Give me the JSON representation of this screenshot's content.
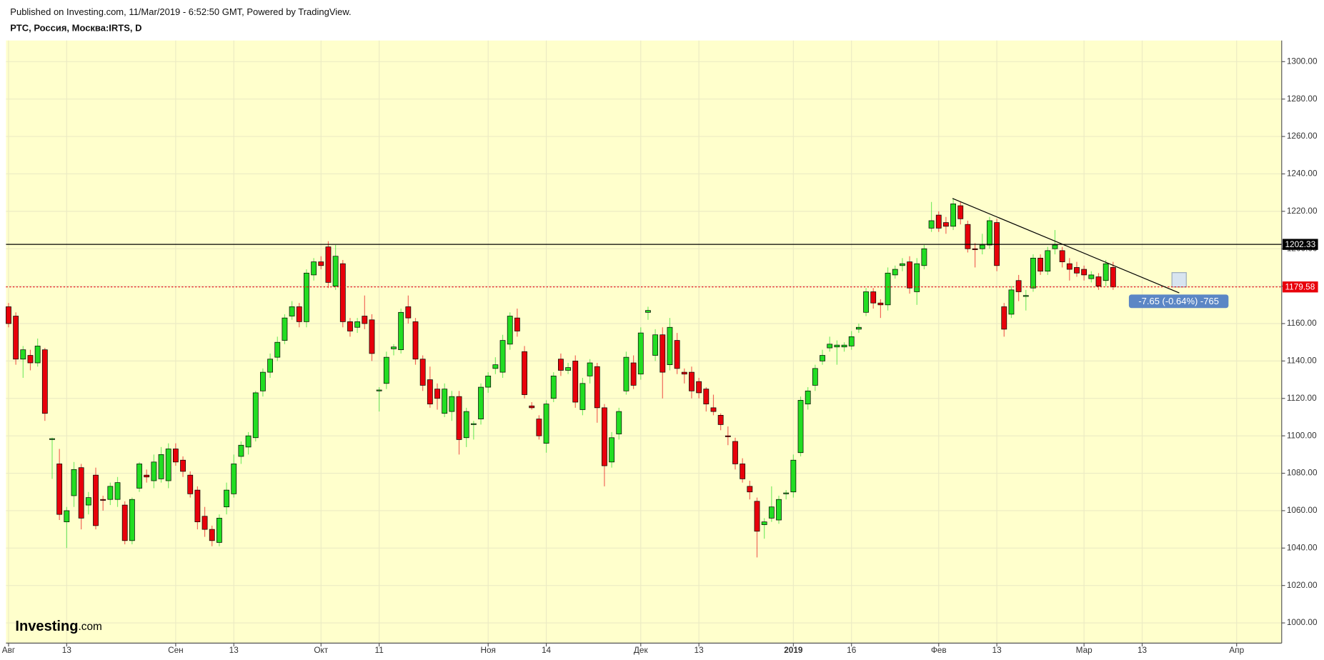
{
  "chart_data": {
    "type": "candlestick",
    "caption": "Published on Investing.com, 11/Mar/2019 - 6:52:50 GMT, Powered by TradingView.",
    "title": "РТС, Россия, Москва:IRTS, D",
    "up_color": "#22dd22",
    "down_color": "#e8000b",
    "open": [
      1169,
      1164,
      1141,
      1143,
      1139,
      1146,
      1098,
      1085,
      1054,
      1068,
      1083,
      1063,
      1079,
      1066,
      1066,
      1066,
      1063,
      1044,
      1072,
      1079,
      1076,
      1077,
      1076,
      1093,
      1087,
      1079,
      1071,
      1057,
      1050,
      1043,
      1062,
      1069,
      1089,
      1094,
      1099,
      1124,
      1134,
      1142,
      1151,
      1164,
      1169,
      1161,
      1186,
      1193,
      1201,
      1180,
      1192,
      1161,
      1158,
      1164,
      1162,
      1124,
      1128,
      1146.5,
      1146,
      1169,
      1161,
      1141,
      1130,
      1125,
      1112,
      1113,
      1121,
      1099,
      1106,
      1109,
      1126,
      1136,
      1134,
      1149,
      1163,
      1145,
      1116,
      1109,
      1096,
      1120,
      1141,
      1135,
      1140,
      1114,
      1132,
      1137,
      1115,
      1086,
      1101,
      1124,
      1139,
      1133,
      1166,
      1143,
      1154,
      1138,
      1151,
      1134,
      1134,
      1129,
      1125,
      1115,
      1111,
      1100,
      1097,
      1085,
      1073,
      1065,
      1052.5,
      1056,
      1055,
      1069,
      1070,
      1091,
      1117,
      1127,
      1140,
      1147,
      1147.5,
      1147.5,
      1148,
      1157,
      1166,
      1177,
      1171,
      1170,
      1186,
      1191,
      1193,
      1177,
      1191,
      1211,
      1218,
      1214,
      1212,
      1223,
      1213,
      1200,
      1200,
      1202,
      1214,
      1169,
      1165,
      1183,
      1174.5,
      1179,
      1195,
      1188,
      1200,
      1199,
      1192,
      1190,
      1189,
      1184,
      1185,
      1183,
      1190
    ],
    "high": [
      1171,
      1166,
      1148,
      1146,
      1152,
      1147,
      1099,
      1093,
      1062,
      1086,
      1085,
      1070,
      1083,
      1068,
      1075,
      1078,
      1065,
      1067,
      1086,
      1082,
      1090,
      1094,
      1096,
      1096,
      1089,
      1081,
      1073,
      1062,
      1052,
      1058,
      1075,
      1090,
      1097,
      1102,
      1124,
      1136,
      1144,
      1153,
      1165,
      1172,
      1171,
      1189,
      1195,
      1196,
      1204,
      1202,
      1194,
      1163,
      1163,
      1175,
      1165,
      1126,
      1145,
      1149,
      1168,
      1175,
      1163,
      1143,
      1137,
      1128,
      1128,
      1124,
      1124,
      1115,
      1108,
      1128,
      1134,
      1142,
      1154,
      1166,
      1168,
      1148,
      1118,
      1111,
      1119,
      1134,
      1144,
      1139,
      1143,
      1131,
      1141,
      1139,
      1117,
      1102,
      1115,
      1145,
      1143,
      1158,
      1169,
      1157,
      1158,
      1163,
      1155,
      1136,
      1137,
      1131,
      1126,
      1122,
      1112,
      1105,
      1099,
      1088,
      1076,
      1067,
      1056,
      1073,
      1068,
      1071,
      1090,
      1121,
      1126,
      1138,
      1146,
      1153,
      1151,
      1150,
      1156,
      1160,
      1179,
      1179,
      1173,
      1190,
      1191,
      1195,
      1196,
      1195,
      1202,
      1225,
      1220,
      1217,
      1227,
      1225,
      1215,
      1203,
      1208,
      1217,
      1216,
      1171,
      1180,
      1186,
      1178,
      1197,
      1197,
      1201,
      1210,
      1201,
      1195,
      1193,
      1191,
      1188,
      1187,
      1194,
      1193
    ],
    "low": [
      1158,
      1138,
      1131,
      1135,
      1137,
      1108,
      1077,
      1055,
      1040,
      1062,
      1050,
      1058,
      1050,
      1060,
      1063,
      1062,
      1042,
      1042,
      1070,
      1075,
      1072,
      1075,
      1072,
      1084,
      1078,
      1067,
      1050,
      1046,
      1041,
      1041,
      1058,
      1067,
      1085,
      1090,
      1097,
      1121,
      1131,
      1140,
      1149,
      1162,
      1158,
      1158,
      1183,
      1189,
      1179,
      1178,
      1158,
      1153,
      1155,
      1157,
      1140,
      1113,
      1125,
      1143,
      1144,
      1160,
      1138,
      1124,
      1115,
      1114,
      1110,
      1108,
      1090,
      1094,
      1098,
      1106,
      1123,
      1133,
      1131,
      1146,
      1153,
      1120,
      1114,
      1098,
      1091,
      1118,
      1132,
      1133,
      1115,
      1111,
      1128,
      1107,
      1073,
      1083,
      1098,
      1122,
      1125,
      1130,
      1162,
      1140,
      1120,
      1135,
      1133,
      1128,
      1120,
      1120,
      1113,
      1111,
      1103,
      1095,
      1082,
      1075,
      1066,
      1035,
      1045,
      1054,
      1053,
      1066,
      1067,
      1089,
      1114,
      1124,
      1138,
      1145,
      1138,
      1145,
      1146,
      1155,
      1164,
      1168,
      1163,
      1167,
      1184,
      1188,
      1176,
      1170,
      1189,
      1209,
      1209,
      1208,
      1210,
      1213,
      1198,
      1190,
      1197,
      1200,
      1188,
      1153,
      1163,
      1172,
      1167,
      1177,
      1186,
      1186,
      1197,
      1190,
      1183,
      1185,
      1183,
      1182,
      1178,
      1180,
      1178
    ],
    "close": [
      1160,
      1141,
      1146,
      1139,
      1148,
      1112,
      1098.5,
      1058,
      1060,
      1082,
      1056,
      1067,
      1052,
      1065.5,
      1073,
      1075,
      1044,
      1066,
      1085,
      1078,
      1086,
      1090,
      1093,
      1086,
      1081,
      1069,
      1054,
      1050,
      1044,
      1056,
      1071,
      1085,
      1095,
      1100,
      1123,
      1134,
      1141,
      1150,
      1163,
      1169,
      1161,
      1187,
      1193,
      1191,
      1182,
      1196,
      1161,
      1156,
      1161,
      1160,
      1144,
      1124.5,
      1142,
      1147.5,
      1166,
      1163,
      1141,
      1127,
      1117,
      1120,
      1125,
      1121,
      1098,
      1113,
      1106.5,
      1126,
      1132,
      1138,
      1151,
      1164,
      1156,
      1122,
      1115,
      1100,
      1117,
      1132,
      1135,
      1136.5,
      1118,
      1128,
      1139,
      1115,
      1084,
      1099,
      1113,
      1142,
      1127,
      1155,
      1167,
      1154,
      1134,
      1158,
      1136,
      1133,
      1124,
      1123,
      1117,
      1113,
      1106,
      1099.5,
      1085,
      1077,
      1070,
      1049,
      1054,
      1062,
      1066,
      1069.5,
      1087,
      1119,
      1124,
      1136,
      1143,
      1149,
      1148.5,
      1148.5,
      1153,
      1158,
      1177,
      1171,
      1170,
      1187,
      1189,
      1192,
      1179,
      1192,
      1200,
      1215,
      1211,
      1212,
      1224,
      1216,
      1200,
      1199.5,
      1202,
      1215,
      1191,
      1157,
      1178,
      1177,
      1175,
      1195,
      1188,
      1199,
      1202,
      1193,
      1189,
      1187,
      1186,
      1186,
      1180,
      1192,
      1179.58
    ],
    "xlim": [
      -0.35,
      175.2
    ],
    "xticks": [
      {
        "value": 0,
        "label": "Авг"
      },
      {
        "value": 8,
        "label": "13"
      },
      {
        "value": 23,
        "label": "Сен"
      },
      {
        "value": 31,
        "label": "13"
      },
      {
        "value": 43,
        "label": "Окт"
      },
      {
        "value": 51,
        "label": "11"
      },
      {
        "value": 66,
        "label": "Ноя"
      },
      {
        "value": 74,
        "label": "14"
      },
      {
        "value": 87,
        "label": "Дек"
      },
      {
        "value": 95,
        "label": "13"
      },
      {
        "value": 108,
        "label": "2019"
      },
      {
        "value": 116,
        "label": "16"
      },
      {
        "value": 128,
        "label": "Фев"
      },
      {
        "value": 136,
        "label": "13"
      },
      {
        "value": 148,
        "label": "Мар"
      },
      {
        "value": 156,
        "label": "13"
      },
      {
        "value": 169,
        "label": "Апр"
      }
    ],
    "ylim": [
      989.2,
      1311.3
    ],
    "yticks": [
      {
        "value": 1000,
        "label": "1000.00"
      },
      {
        "value": 1020,
        "label": "1020.00"
      },
      {
        "value": 1040,
        "label": "1040.00"
      },
      {
        "value": 1060,
        "label": "1060.00"
      },
      {
        "value": 1080,
        "label": "1080.00"
      },
      {
        "value": 1100,
        "label": "1100.00"
      },
      {
        "value": 1120,
        "label": "1120.00"
      },
      {
        "value": 1140,
        "label": "1140.00"
      },
      {
        "value": 1160,
        "label": "1160.00"
      },
      {
        "value": 1180,
        "label": "1180.00"
      },
      {
        "value": 1200,
        "label": "1200.00"
      },
      {
        "value": 1220,
        "label": "1220.00"
      },
      {
        "value": 1240,
        "label": "1240.00"
      },
      {
        "value": 1260,
        "label": "1260.00"
      },
      {
        "value": 1280,
        "label": "1280.00"
      },
      {
        "value": 1300,
        "label": "1300.00"
      }
    ],
    "grid": true,
    "levels": [
      {
        "value": 1202.33,
        "color": "#000000",
        "style": "solid"
      },
      {
        "value": 1179.58,
        "color": "#e8000b",
        "style": "dotted"
      }
    ],
    "trendline": {
      "x": [
        129.9,
        161.1
      ],
      "y": [
        1226.9,
        1176.4
      ],
      "color": "#000000"
    },
    "measure_label": "-7.65 (-0.64%) -765",
    "logo": {
      "name": "Investing",
      "suffix": ".com"
    }
  }
}
